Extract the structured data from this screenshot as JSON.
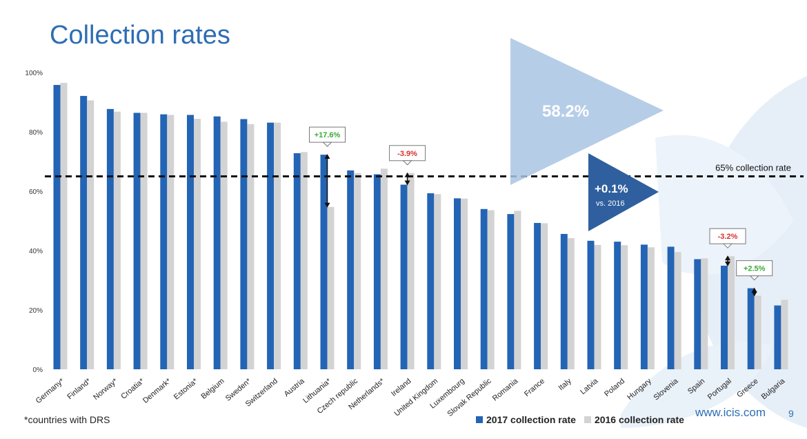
{
  "slide": {
    "title": "Collection rates",
    "footnote": "*countries with DRS",
    "website": "www.icis.com",
    "page_number": "9"
  },
  "colors": {
    "series_2017": "#2364b5",
    "series_2016": "#d3d3d3",
    "title": "#2e6db3",
    "positive": "#3aaa35",
    "negative": "#d9302b",
    "big_triangle": "#a9c4e3",
    "small_triangle": "#2f5f9e"
  },
  "chart_data": {
    "type": "bar",
    "categories": [
      "Germany*",
      "Finland*",
      "Norway*",
      "Croatia*",
      "Denmark*",
      "Estonia*",
      "Belgium",
      "Sweden*",
      "Switzerland",
      "Austria",
      "Lithuania*",
      "Czech republic",
      "Netherlands*",
      "Ireland",
      "United Kingdom",
      "Luxembourg",
      "Slovak Republic",
      "Romania",
      "France",
      "Italy",
      "Latvia",
      "Poland",
      "Hungary",
      "Slovenia",
      "Spain",
      "Portugal",
      "Greece",
      "Bulgaria"
    ],
    "series": [
      {
        "name": "2017 collection rate",
        "values": [
          95.8,
          92.1,
          87.7,
          86.4,
          85.9,
          85.7,
          85.2,
          84.3,
          83.1,
          72.8,
          72.3,
          67.0,
          65.7,
          62.2,
          59.3,
          57.6,
          54.0,
          52.3,
          49.3,
          45.6,
          43.3,
          43.0,
          42.0,
          41.3,
          37.1,
          34.9,
          27.3,
          21.5
        ]
      },
      {
        "name": "2016 collection rate",
        "values": [
          96.5,
          90.6,
          86.8,
          86.4,
          85.7,
          84.4,
          83.4,
          82.6,
          83.1,
          73.2,
          54.7,
          66.1,
          67.6,
          66.1,
          59.0,
          57.5,
          53.6,
          53.4,
          49.2,
          44.2,
          41.9,
          41.8,
          41.1,
          39.5,
          37.4,
          38.1,
          24.8,
          23.4
        ]
      }
    ],
    "y_ticks": [
      "0%",
      "20%",
      "40%",
      "60%",
      "80%",
      "100%"
    ],
    "ylim": [
      0,
      100
    ],
    "threshold": {
      "value": 65,
      "label": "65% collection rate"
    },
    "legend": [
      "2017 collection rate",
      "2016 collection rate"
    ],
    "legend_position": "bottom-right",
    "grid": false,
    "annotations": [
      {
        "category": "Lithuania*",
        "text": "+17.6%",
        "sign": "positive"
      },
      {
        "category": "Ireland",
        "text": "-3.9%",
        "sign": "negative"
      },
      {
        "category": "Portugal",
        "text": "-3.2%",
        "sign": "negative"
      },
      {
        "category": "Greece",
        "text": "+2.5%",
        "sign": "positive"
      }
    ],
    "callouts": [
      {
        "text": "58.2%"
      },
      {
        "text": "+0.1%",
        "subtext": "vs. 2016"
      }
    ]
  }
}
